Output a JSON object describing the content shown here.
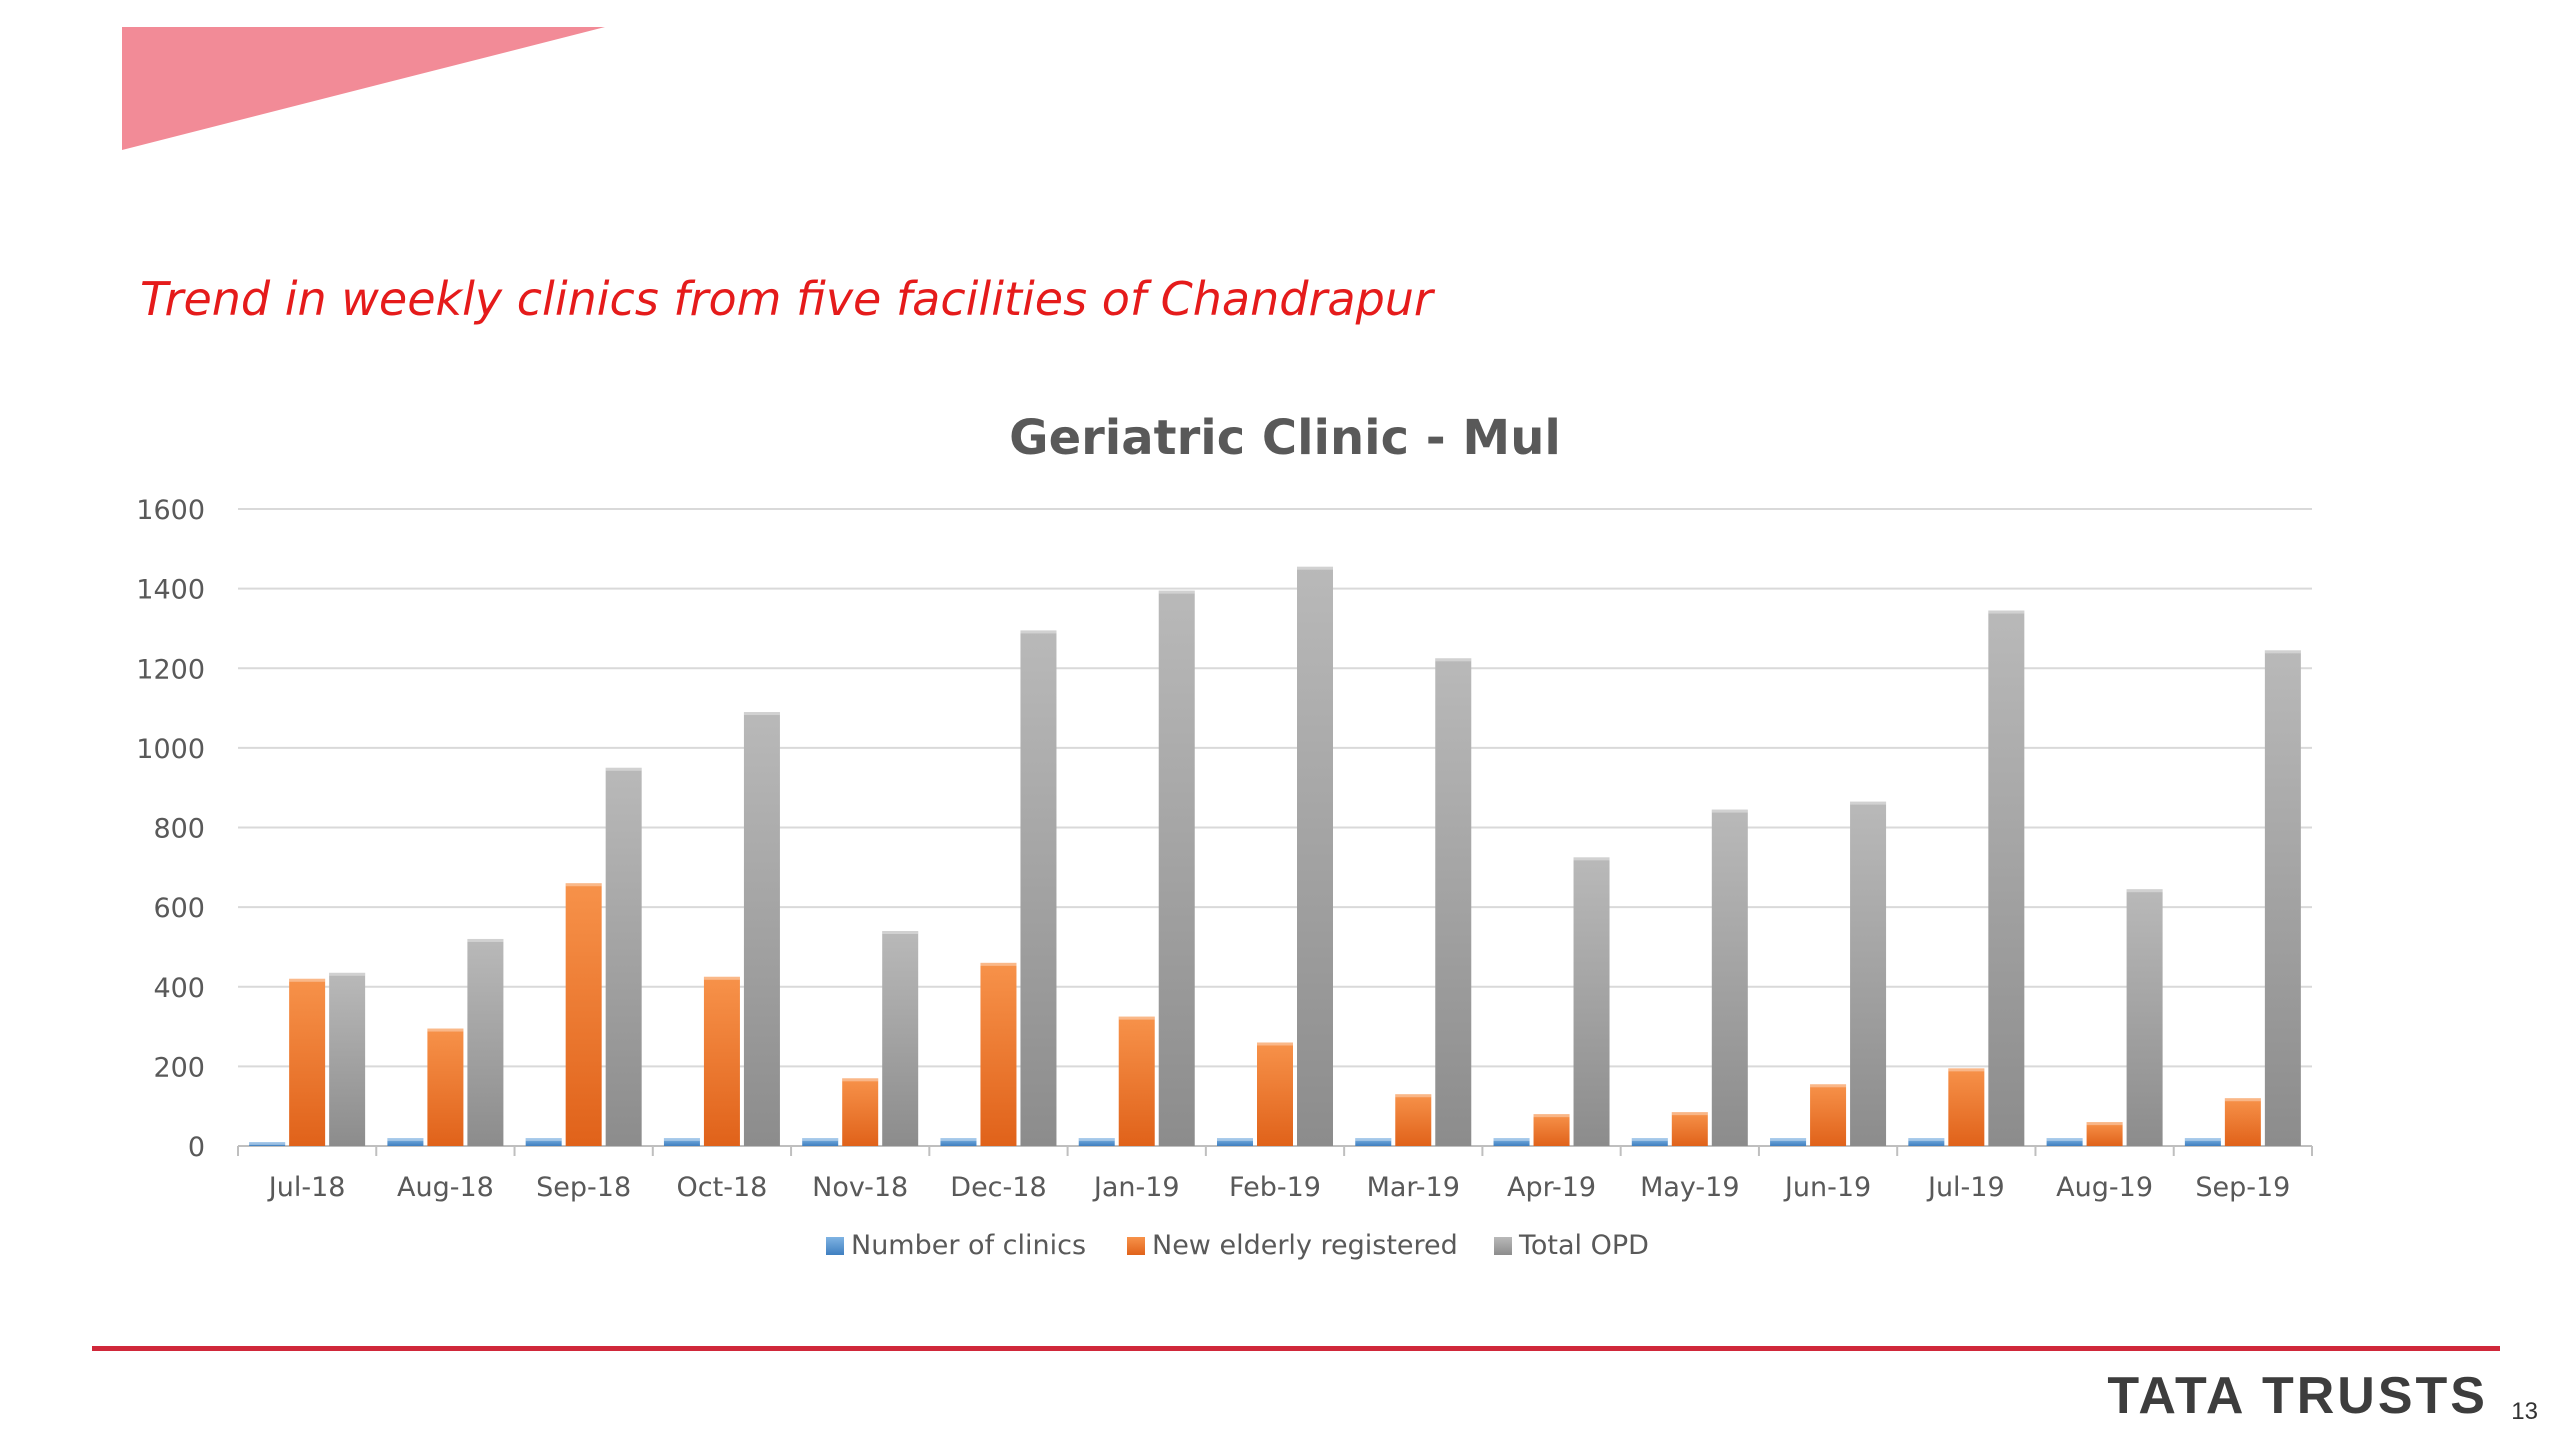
{
  "slide": {
    "subtitle": "Trend in weekly clinics from five facilities of Chandrapur",
    "brand": "TATA TRUSTS",
    "page_number": "13",
    "colors": {
      "accent_shape": "#f28b97",
      "footer_rule": "#d0283a",
      "subtitle": "#e51b1b"
    }
  },
  "chart_data": {
    "type": "bar",
    "title": "Geriatric Clinic - Mul",
    "xlabel": "",
    "ylabel": "",
    "ylim": [
      0,
      1600
    ],
    "yticks": [
      0,
      200,
      400,
      600,
      800,
      1000,
      1200,
      1400,
      1600
    ],
    "grid": true,
    "legend_position": "bottom",
    "categories": [
      "Jul-18",
      "Aug-18",
      "Sep-18",
      "Oct-18",
      "Nov-18",
      "Dec-18",
      "Jan-19",
      "Feb-19",
      "Mar-19",
      "Apr-19",
      "May-19",
      "Jun-19",
      "Jul-19",
      "Aug-19",
      "Sep-19"
    ],
    "series": [
      {
        "name": "Number of clinics",
        "color": "#5b9bd5",
        "values": [
          10,
          20,
          20,
          20,
          20,
          20,
          20,
          20,
          20,
          20,
          20,
          20,
          20,
          20,
          20
        ]
      },
      {
        "name": "New elderly registered",
        "color": "#ed7d31",
        "values": [
          420,
          295,
          660,
          425,
          170,
          460,
          325,
          260,
          130,
          80,
          85,
          155,
          195,
          60,
          120
        ]
      },
      {
        "name": "Total OPD",
        "color": "#a5a5a5",
        "values": [
          435,
          520,
          950,
          1090,
          540,
          1295,
          1395,
          1455,
          1225,
          725,
          845,
          865,
          1345,
          645,
          1245
        ]
      }
    ]
  }
}
